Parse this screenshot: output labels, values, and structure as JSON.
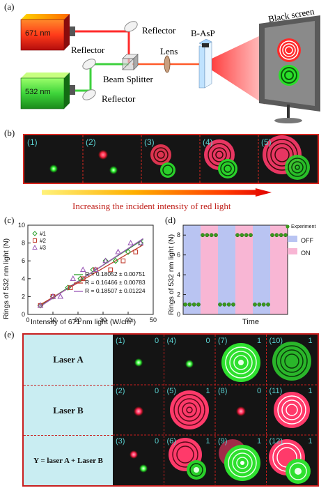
{
  "panel_a": {
    "label": "(a)",
    "laser_red": "671 nm",
    "laser_green": "532 nm",
    "reflector_1": "Reflector",
    "reflector_2": "Reflector",
    "reflector_3": "Reflector",
    "beam_splitter": "Beam Splitter",
    "lens": "Lens",
    "sample": "B-AsP",
    "screen": "Black screen"
  },
  "panel_b": {
    "label": "(b)",
    "frames": [
      "(1)",
      "(2)",
      "(3)",
      "(4)",
      "(5)"
    ],
    "caption": "Increasing the incident intensity of red light"
  },
  "panel_c": {
    "label": "(c)",
    "ylabel": "Rings of 532 nm light (N)",
    "xlabel": "Intensity of 671 nm light (W/cm²)",
    "fits": [
      {
        "text": "R = 0.18052 ± 0.00751",
        "color": "#2ca02c"
      },
      {
        "text": "R = 0.16466 ± 0.00783",
        "color": "#c0392b"
      },
      {
        "text": "R = 0.18507 ± 0.01224",
        "color": "#9b59b6"
      }
    ]
  },
  "panel_d": {
    "label": "(d)",
    "ylabel": "Rings of 532 nm light (N)",
    "xlabel": "Time",
    "legend_experiment": "Experiment",
    "legend_off": "OFF",
    "legend_on": "ON"
  },
  "panel_e": {
    "label": "(e)",
    "rows": [
      "Laser A",
      "Laser B",
      "Y = laser A + Laser B"
    ],
    "cells": [
      [
        {
          "id": "(1)",
          "v": "0"
        },
        {
          "id": "(4)",
          "v": "0"
        },
        {
          "id": "(7)",
          "v": "1"
        },
        {
          "id": "(10)",
          "v": "1"
        }
      ],
      [
        {
          "id": "(2)",
          "v": "0"
        },
        {
          "id": "(5)",
          "v": "1"
        },
        {
          "id": "(8)",
          "v": "0"
        },
        {
          "id": "(11)",
          "v": "1"
        }
      ],
      [
        {
          "id": "(3)",
          "v": "0"
        },
        {
          "id": "(6)",
          "v": "1"
        },
        {
          "id": "(9)",
          "v": "1"
        },
        {
          "id": "(12)",
          "v": "1"
        }
      ]
    ]
  },
  "chart_data": [
    {
      "type": "scatter",
      "xlabel": "Intensity of 671 nm light (W/cm²)",
      "ylabel": "Rings of 532 nm light (N)",
      "xlim": [
        0,
        50
      ],
      "ylim": [
        0,
        10
      ],
      "xticks": [
        0,
        10,
        20,
        30,
        40,
        50
      ],
      "yticks": [
        0,
        2,
        4,
        6,
        8,
        10
      ],
      "series": [
        {
          "name": "#1",
          "color": "#2ca02c",
          "marker": "diamond",
          "x": [
            5,
            10,
            16,
            21,
            26,
            31,
            35,
            40,
            45
          ],
          "y": [
            1,
            2,
            3,
            4,
            5,
            6,
            6,
            7,
            8
          ]
        },
        {
          "name": "#2",
          "color": "#c0392b",
          "marker": "square",
          "x": [
            5,
            10,
            17,
            22,
            27,
            33,
            38,
            43
          ],
          "y": [
            1,
            2,
            3,
            4,
            5,
            5,
            6,
            7
          ]
        },
        {
          "name": "#3",
          "color": "#9b59b6",
          "marker": "triangle",
          "x": [
            5,
            10,
            13,
            18,
            22,
            27,
            31,
            36,
            41,
            45
          ],
          "y": [
            1,
            2,
            2,
            4,
            5,
            5,
            6,
            7,
            8,
            8
          ]
        }
      ],
      "fit_lines": [
        {
          "series": "#1",
          "x": [
            5,
            46
          ],
          "y": [
            1.0,
            8.4
          ]
        },
        {
          "series": "#2",
          "x": [
            5,
            46
          ],
          "y": [
            1.1,
            7.8
          ]
        },
        {
          "series": "#3",
          "x": [
            5,
            46
          ],
          "y": [
            0.9,
            8.5
          ]
        }
      ]
    },
    {
      "type": "scatter",
      "xlabel": "Time",
      "ylabel": "Rings of 532 nm light (N)",
      "ylim": [
        0,
        9
      ],
      "yticks": [
        0,
        2,
        4,
        6,
        8
      ],
      "bands": [
        "OFF",
        "ON",
        "OFF",
        "ON",
        "OFF",
        "ON"
      ],
      "series": [
        {
          "name": "Experiment",
          "color": "#3a9a1c",
          "groups": [
            {
              "band": 0,
              "y": 1,
              "n": 4
            },
            {
              "band": 1,
              "y": 8,
              "n": 4
            },
            {
              "band": 2,
              "y": 1,
              "n": 4
            },
            {
              "band": 3,
              "y": 8,
              "n": 4
            },
            {
              "band": 4,
              "y": 1,
              "n": 4
            },
            {
              "band": 5,
              "y": 8,
              "n": 4
            }
          ]
        }
      ]
    }
  ]
}
